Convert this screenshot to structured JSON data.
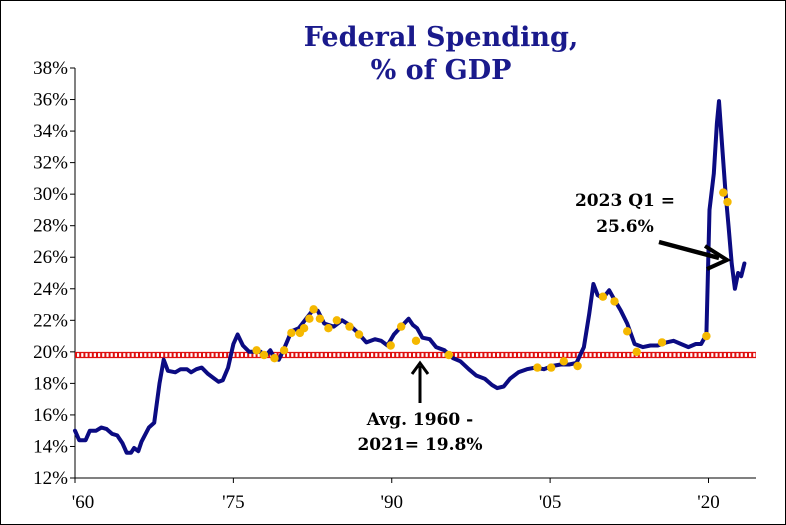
{
  "chart_data": {
    "type": "line",
    "title": "Federal Spending,",
    "subtitle": "% of GDP",
    "xlabel": "",
    "ylabel": "",
    "xlim": [
      1960,
      2024.5
    ],
    "ylim": [
      12,
      38
    ],
    "y_ticks": [
      12,
      14,
      16,
      18,
      20,
      22,
      24,
      26,
      28,
      30,
      32,
      34,
      36,
      38
    ],
    "y_tick_labels": [
      "12%",
      "14%",
      "16%",
      "18%",
      "20%",
      "22%",
      "24%",
      "26%",
      "28%",
      "30%",
      "32%",
      "34%",
      "36%",
      "38%"
    ],
    "x_ticks": [
      1960,
      1975,
      1990,
      2005,
      2020
    ],
    "x_tick_labels": [
      "'60",
      "'75",
      "'90",
      "'05",
      "'20"
    ],
    "grid": false,
    "series": [
      {
        "color": "#0b0b82",
        "points": [
          [
            1960,
            15
          ],
          [
            1960.4,
            14.4
          ],
          [
            1961,
            14.4
          ],
          [
            1961.4,
            15
          ],
          [
            1962,
            15
          ],
          [
            1962.5,
            15.2
          ],
          [
            1963,
            15.1
          ],
          [
            1963.5,
            14.8
          ],
          [
            1964,
            14.7
          ],
          [
            1964.5,
            14.2
          ],
          [
            1964.9,
            13.6
          ],
          [
            1965.3,
            13.6
          ],
          [
            1965.6,
            13.9
          ],
          [
            1966,
            13.7
          ],
          [
            1966.3,
            14.3
          ],
          [
            1967,
            15.2
          ],
          [
            1967.5,
            15.5
          ],
          [
            1968,
            18
          ],
          [
            1968.4,
            19.5
          ],
          [
            1968.8,
            18.8
          ],
          [
            1969.5,
            18.7
          ],
          [
            1970,
            18.9
          ],
          [
            1970.6,
            18.9
          ],
          [
            1971,
            18.7
          ],
          [
            1971.5,
            18.9
          ],
          [
            1972,
            19
          ],
          [
            1972.6,
            18.6
          ],
          [
            1973,
            18.4
          ],
          [
            1973.6,
            18.1
          ],
          [
            1974,
            18.2
          ],
          [
            1974.5,
            19
          ],
          [
            1975,
            20.5
          ],
          [
            1975.4,
            21.1
          ],
          [
            1975.9,
            20.4
          ],
          [
            1976.5,
            20
          ],
          [
            1977,
            20
          ],
          [
            1977.6,
            20
          ],
          [
            1978,
            19.7
          ],
          [
            1978.5,
            20.1
          ],
          [
            1978.9,
            19.6
          ],
          [
            1979.3,
            19.5
          ],
          [
            1979.8,
            20.2
          ],
          [
            1980.5,
            21.3
          ],
          [
            1981.2,
            21.5
          ],
          [
            1982,
            22.2
          ],
          [
            1982.6,
            22.7
          ],
          [
            1983,
            22.6
          ],
          [
            1983.6,
            21.8
          ],
          [
            1984.5,
            21.6
          ],
          [
            1985.3,
            22
          ],
          [
            1986,
            21.7
          ],
          [
            1986.8,
            21.2
          ],
          [
            1987.6,
            20.6
          ],
          [
            1988.4,
            20.8
          ],
          [
            1989,
            20.7
          ],
          [
            1989.6,
            20.4
          ],
          [
            1990.2,
            21.1
          ],
          [
            1990.9,
            21.6
          ],
          [
            1991.6,
            22.1
          ],
          [
            1992,
            21.7
          ],
          [
            1992.4,
            21.5
          ],
          [
            1992.9,
            20.9
          ],
          [
            1993.6,
            20.8
          ],
          [
            1994.2,
            20.3
          ],
          [
            1995,
            20.1
          ],
          [
            1995.8,
            19.6
          ],
          [
            1996.5,
            19.4
          ],
          [
            1997.3,
            18.9
          ],
          [
            1998,
            18.5
          ],
          [
            1998.8,
            18.3
          ],
          [
            1999.5,
            17.9
          ],
          [
            2000,
            17.7
          ],
          [
            2000.6,
            17.8
          ],
          [
            2001.2,
            18.3
          ],
          [
            2002,
            18.7
          ],
          [
            2002.8,
            18.9
          ],
          [
            2003.6,
            19
          ],
          [
            2004.4,
            18.9
          ],
          [
            2005.2,
            19.1
          ],
          [
            2006,
            19.2
          ],
          [
            2006.8,
            19.2
          ],
          [
            2007.5,
            19.3
          ],
          [
            2008.2,
            20.3
          ],
          [
            2008.7,
            22.4
          ],
          [
            2009.1,
            24.3
          ],
          [
            2009.5,
            23.6
          ],
          [
            2010,
            23.4
          ],
          [
            2010.6,
            23.9
          ],
          [
            2011.1,
            23.3
          ],
          [
            2011.7,
            22.6
          ],
          [
            2012.3,
            21.8
          ],
          [
            2013,
            20.5
          ],
          [
            2013.8,
            20.3
          ],
          [
            2014.5,
            20.4
          ],
          [
            2015.2,
            20.4
          ],
          [
            2016,
            20.6
          ],
          [
            2016.7,
            20.7
          ],
          [
            2017.4,
            20.5
          ],
          [
            2018.1,
            20.3
          ],
          [
            2018.8,
            20.5
          ],
          [
            2019.3,
            20.5
          ],
          [
            2019.8,
            21.1
          ],
          [
            2020.1,
            29
          ],
          [
            2020.5,
            31.3
          ],
          [
            2020.8,
            34.5
          ],
          [
            2021,
            35.9
          ],
          [
            2021.3,
            33
          ],
          [
            2021.6,
            30.2
          ],
          [
            2021.9,
            28
          ],
          [
            2022.2,
            25.6
          ],
          [
            2022.5,
            24
          ],
          [
            2022.8,
            25
          ],
          [
            2023.1,
            24.8
          ],
          [
            2023.4,
            25.6
          ]
        ]
      }
    ],
    "highlight_points": [
      [
        1977.2,
        20.1
      ],
      [
        1977.9,
        19.8
      ],
      [
        1978.9,
        19.6
      ],
      [
        1979.8,
        20.1
      ],
      [
        1980.5,
        21.2
      ],
      [
        1981.3,
        21.2
      ],
      [
        1981.7,
        21.5
      ],
      [
        1982.2,
        22.1
      ],
      [
        1982.6,
        22.7
      ],
      [
        1983.2,
        22.1
      ],
      [
        1984,
        21.5
      ],
      [
        1984.8,
        22
      ],
      [
        1986,
        21.6
      ],
      [
        1986.9,
        21.1
      ],
      [
        1989.9,
        20.4
      ],
      [
        1990.9,
        21.6
      ],
      [
        1992.3,
        20.7
      ],
      [
        1995.4,
        19.8
      ],
      [
        2003.8,
        19
      ],
      [
        2005.1,
        19
      ],
      [
        2006.3,
        19.4
      ],
      [
        2007.6,
        19.1
      ],
      [
        2010,
        23.5
      ],
      [
        2011.1,
        23.2
      ],
      [
        2012.3,
        21.3
      ],
      [
        2013.2,
        20
      ],
      [
        2015.6,
        20.6
      ],
      [
        2019.8,
        21
      ],
      [
        2021.4,
        30.1
      ],
      [
        2021.8,
        29.5
      ]
    ],
    "reference_line": {
      "value": 19.8,
      "color": "#e01010"
    },
    "annotations": [
      {
        "lines": [
          "2023 Q1 =",
          "25.6%"
        ]
      },
      {
        "lines": [
          "Avg. 1960 -",
          "2021= 19.8%"
        ]
      }
    ],
    "colors": {
      "line": "#0b0b82",
      "points": "#f5b800",
      "average": "#e01010",
      "title": "#1a1a8c"
    }
  }
}
